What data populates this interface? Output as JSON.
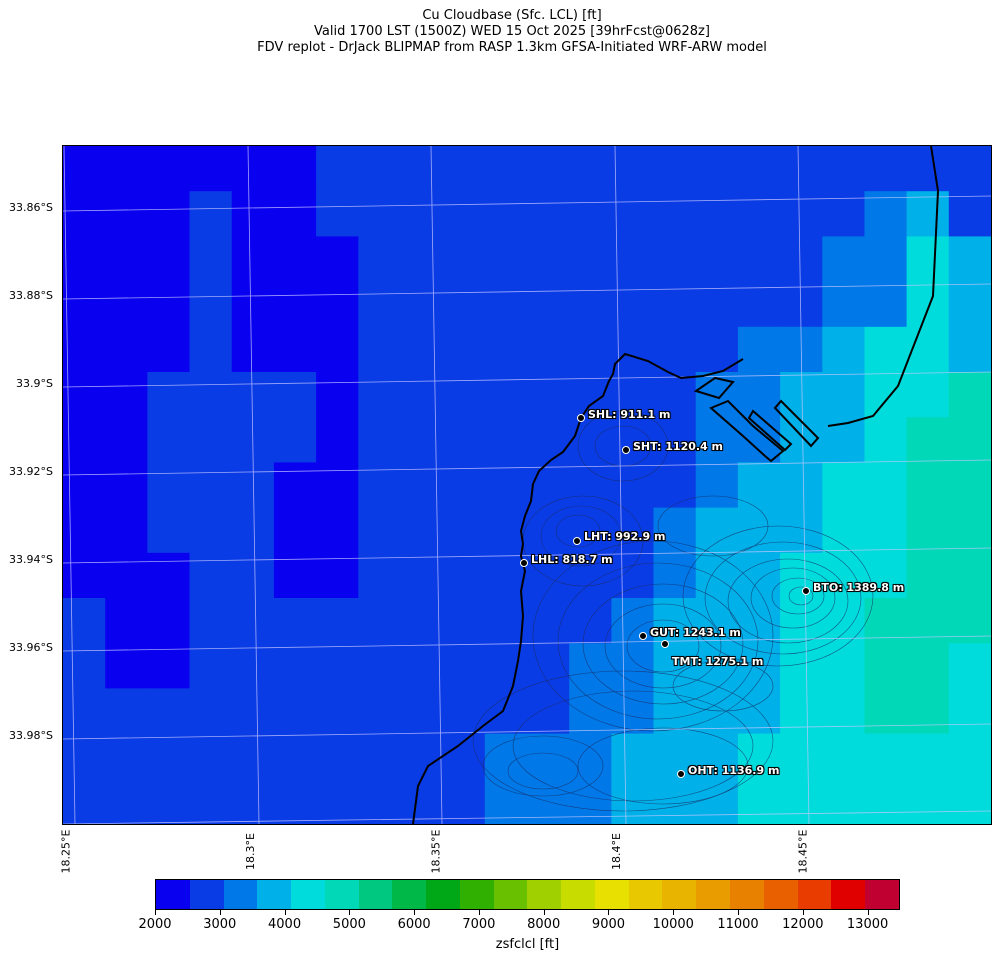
{
  "title": {
    "line1": "Cu Cloudbase (Sfc. LCL) [ft]",
    "line2": "Valid 1700 LST (1500Z) WED 15 Oct 2025 [39hrFcst@0628z]",
    "line3": "FDV replot - DrJack BLIPMAP from RASP 1.3km GFSA-Initiated WRF-ARW model"
  },
  "lat_labels": [
    "33.86°S",
    "33.88°S",
    "33.9°S",
    "33.92°S",
    "33.94°S",
    "33.96°S",
    "33.98°S"
  ],
  "lon_labels": [
    "18.25°E",
    "18.3°E",
    "18.35°E",
    "18.4°E",
    "18.45°E"
  ],
  "stations": [
    {
      "label": "SHL: 911.1 m"
    },
    {
      "label": "SHT: 1120.4 m"
    },
    {
      "label": "LHT: 992.9 m"
    },
    {
      "label": "LHL: 818.7 m"
    },
    {
      "label": "BTO: 1389.8 m"
    },
    {
      "label": "GUT: 1243.1 m"
    },
    {
      "label": "TMT: 1275.1 m"
    },
    {
      "label": "OHT: 1136.9 m"
    }
  ],
  "colorbar": {
    "label": "zsfclcl [ft]",
    "ticks": [
      "2000",
      "3000",
      "4000",
      "5000",
      "6000",
      "7000",
      "8000",
      "9000",
      "10000",
      "11000",
      "12000",
      "13000"
    ],
    "colors": [
      "#0a00f0",
      "#0a3ce6",
      "#0078e8",
      "#00b0e8",
      "#00dcdc",
      "#00d8b8",
      "#00c880",
      "#00b848",
      "#00a818",
      "#30b000",
      "#68c000",
      "#a0d000",
      "#c8dc00",
      "#e8e000",
      "#e8c800",
      "#e8b400",
      "#e89c00",
      "#e88000",
      "#e86000",
      "#e83c00",
      "#e00000",
      "#c00030"
    ]
  },
  "chart_data": {
    "type": "heatmap",
    "title": "Cu Cloudbase (Sfc. LCL) [ft]",
    "units": "ft",
    "colorbar_range": [
      2000,
      13500
    ],
    "legend_placement": "bottom",
    "grid": true
  }
}
